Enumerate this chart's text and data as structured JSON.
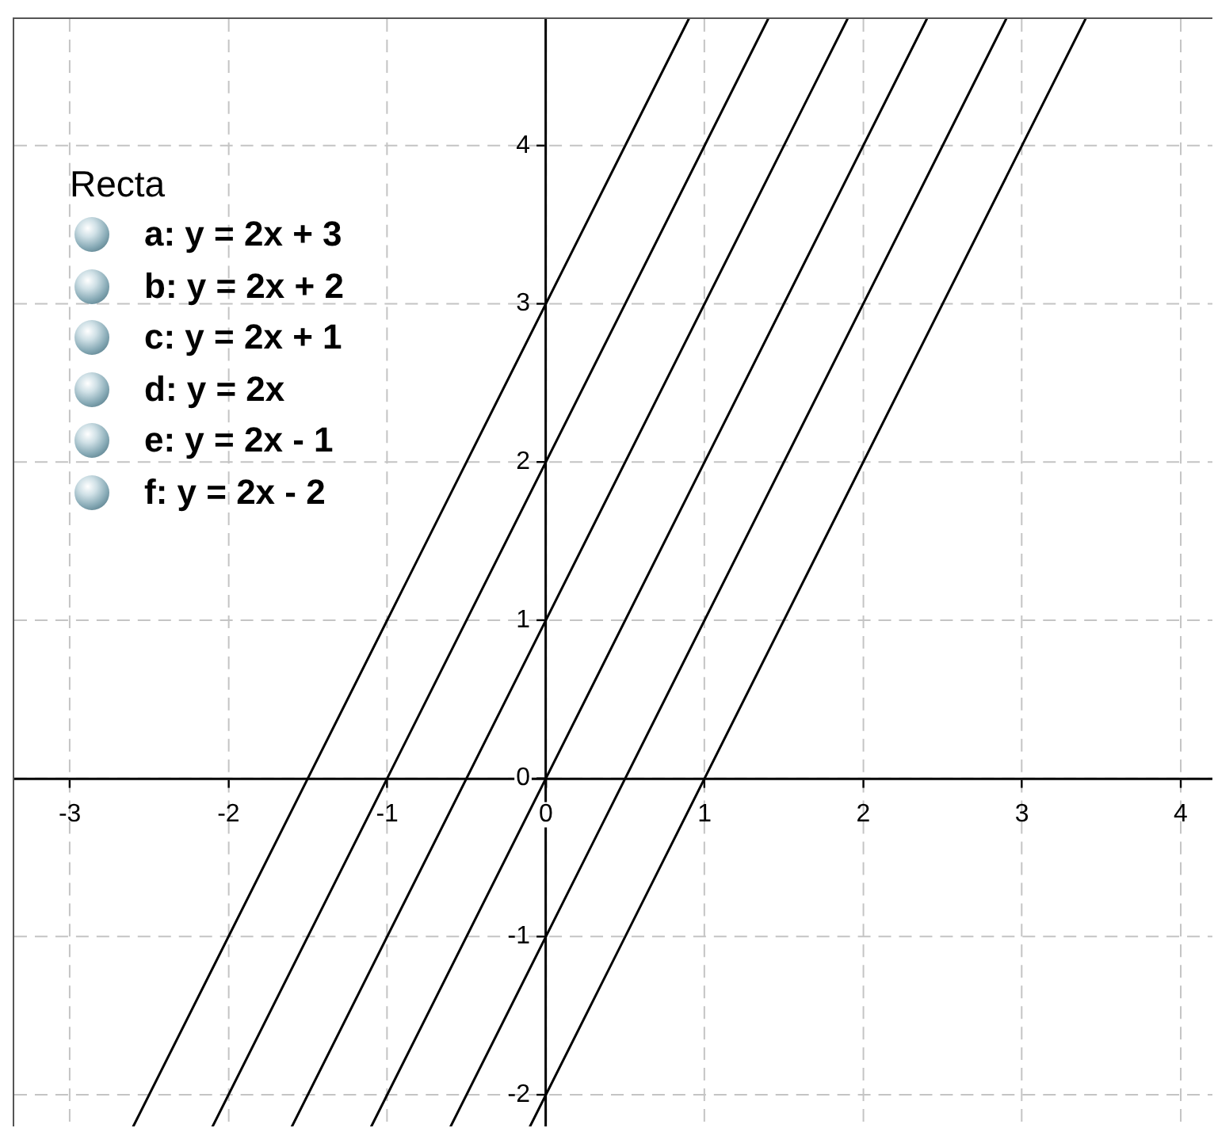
{
  "chart_data": {
    "type": "line",
    "legend_title": "Recta",
    "legend": "top left",
    "grid": true,
    "marker": "none",
    "xlim": [
      -3.35,
      4.2
    ],
    "ylim": [
      -2.2,
      4.8
    ],
    "xticks": [
      -3,
      -2,
      -1,
      0,
      1,
      2,
      3,
      4
    ],
    "yticks": [
      -2,
      -1,
      0,
      1,
      2,
      3,
      4
    ],
    "series": [
      {
        "name": "a: y = 2x + 3",
        "color": "#000000",
        "x": [
          -2.6,
          0.9
        ],
        "values": [
          -2.2,
          4.8
        ]
      },
      {
        "name": "b: y = 2x + 2",
        "color": "#000000",
        "x": [
          -2.1,
          1.4
        ],
        "values": [
          -2.2,
          4.8
        ]
      },
      {
        "name": "c: y = 2x + 1",
        "color": "#000000",
        "x": [
          -1.6,
          1.9
        ],
        "values": [
          -2.2,
          4.8
        ]
      },
      {
        "name": "d: y = 2x",
        "color": "#000000",
        "x": [
          -1.1,
          2.4
        ],
        "values": [
          -2.2,
          4.8
        ]
      },
      {
        "name": "e: y = 2x - 1",
        "color": "#000000",
        "x": [
          -0.6,
          2.9
        ],
        "values": [
          -2.2,
          4.8
        ]
      },
      {
        "name": "f: y = 2x - 2",
        "color": "#000000",
        "x": [
          -0.1,
          3.4
        ],
        "values": [
          -2.2,
          4.8
        ]
      }
    ]
  }
}
